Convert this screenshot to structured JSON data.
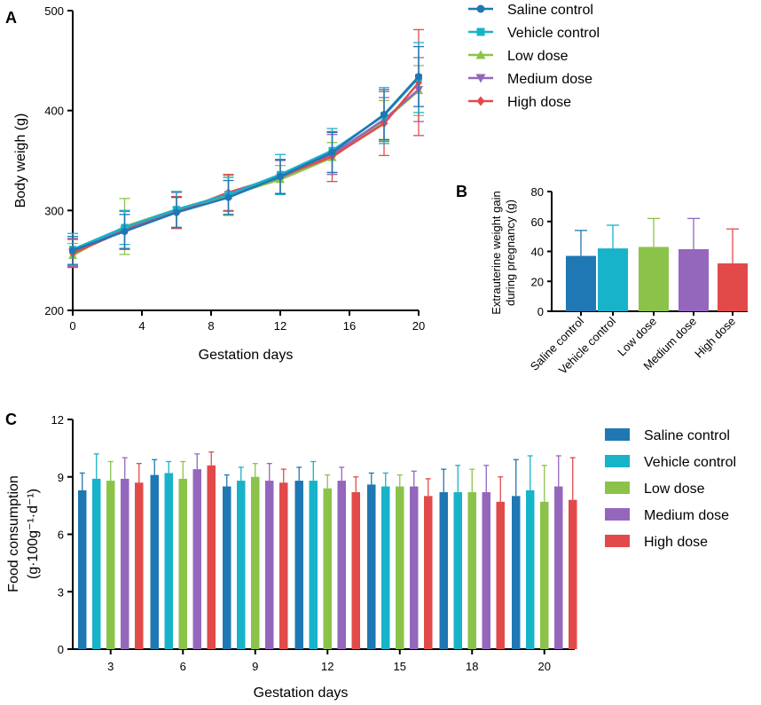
{
  "colors": {
    "saline": "#1f77b4",
    "vehicle": "#17b3c9",
    "low": "#8bc34a",
    "medium": "#9467bd",
    "high": "#e24a4a"
  },
  "chart_data": [
    {
      "panel": "A",
      "type": "line",
      "xlabel": "Gestation days",
      "ylabel": "Body weigh (g)",
      "xlim": [
        0,
        20
      ],
      "ylim": [
        200,
        500
      ],
      "xticks": [
        0,
        4,
        8,
        12,
        16,
        20
      ],
      "yticks": [
        200,
        300,
        400,
        500
      ],
      "x": [
        0,
        3,
        6,
        9,
        12,
        15,
        18,
        20
      ],
      "series": [
        {
          "name": "Saline control",
          "key": "saline",
          "marker": "circle",
          "values": [
            260,
            279,
            298,
            313,
            334,
            358,
            396,
            434
          ],
          "errors": [
            14,
            17,
            15,
            17,
            17,
            20,
            25,
            30
          ]
        },
        {
          "name": "Vehicle control",
          "key": "vehicle",
          "marker": "square",
          "values": [
            261,
            283,
            301,
            316,
            336,
            360,
            395,
            433
          ],
          "errors": [
            16,
            17,
            18,
            17,
            20,
            22,
            28,
            35
          ]
        },
        {
          "name": "Low dose",
          "key": "low",
          "marker": "triangle-up",
          "values": [
            255,
            284,
            301,
            315,
            331,
            353,
            390,
            420
          ],
          "errors": [
            12,
            28,
            18,
            20,
            14,
            15,
            20,
            25
          ]
        },
        {
          "name": "Medium dose",
          "key": "medium",
          "marker": "triangle-down",
          "values": [
            258,
            281,
            300,
            316,
            333,
            356,
            391,
            421
          ],
          "errors": [
            14,
            19,
            18,
            20,
            17,
            20,
            22,
            32
          ]
        },
        {
          "name": "High dose",
          "key": "high",
          "marker": "diamond",
          "values": [
            257,
            280,
            298,
            318,
            334,
            354,
            387,
            428
          ],
          "errors": [
            14,
            19,
            16,
            18,
            17,
            25,
            32,
            53
          ]
        }
      ]
    },
    {
      "panel": "B",
      "type": "bar",
      "ylabel": "Extrauterine weight gain during pregnancy (g)",
      "ylabel_lines": [
        "Extrauterine weight gain",
        "during pregnancy (g)"
      ],
      "ylim": [
        0,
        80
      ],
      "yticks": [
        0,
        20,
        40,
        60,
        80
      ],
      "categories": [
        "Saline control",
        "Vehicle control",
        "Low dose",
        "Medium dose",
        "High dose"
      ],
      "keys": [
        "saline",
        "vehicle",
        "low",
        "medium",
        "high"
      ],
      "values": [
        37,
        42,
        43,
        41.5,
        32
      ],
      "errors": [
        17,
        15.5,
        19,
        20.5,
        23
      ]
    },
    {
      "panel": "C",
      "type": "bar",
      "xlabel": "Gestation days",
      "ylabel_line1": "Food consumption",
      "ylabel_line2": "(g·100g⁻¹·d⁻¹)",
      "ylim": [
        0,
        12
      ],
      "yticks": [
        0,
        3,
        6,
        9,
        12
      ],
      "categories": [
        "3",
        "6",
        "9",
        "12",
        "15",
        "18",
        "20"
      ],
      "series": [
        {
          "name": "Saline control",
          "key": "saline",
          "values": [
            8.3,
            9.1,
            8.5,
            8.8,
            8.6,
            8.2,
            8.0
          ],
          "errors": [
            0.9,
            0.8,
            0.6,
            0.7,
            0.6,
            1.2,
            1.9
          ]
        },
        {
          "name": "Vehicle control",
          "key": "vehicle",
          "values": [
            8.9,
            9.2,
            8.8,
            8.8,
            8.5,
            8.2,
            8.3
          ],
          "errors": [
            1.3,
            0.6,
            0.7,
            1.0,
            0.7,
            1.4,
            1.8
          ]
        },
        {
          "name": "Low dose",
          "key": "low",
          "values": [
            8.8,
            8.9,
            9.0,
            8.4,
            8.5,
            8.2,
            7.7
          ],
          "errors": [
            1.0,
            0.9,
            0.7,
            0.7,
            0.6,
            1.2,
            1.9
          ]
        },
        {
          "name": "Medium dose",
          "key": "medium",
          "values": [
            8.9,
            9.4,
            8.8,
            8.8,
            8.5,
            8.2,
            8.5
          ],
          "errors": [
            1.1,
            0.8,
            0.9,
            0.7,
            0.8,
            1.4,
            1.6
          ]
        },
        {
          "name": "High dose",
          "key": "high",
          "values": [
            8.7,
            9.6,
            8.7,
            8.2,
            8.0,
            7.7,
            7.8
          ],
          "errors": [
            1.0,
            0.7,
            0.7,
            0.8,
            0.9,
            1.3,
            2.2
          ]
        }
      ]
    }
  ]
}
